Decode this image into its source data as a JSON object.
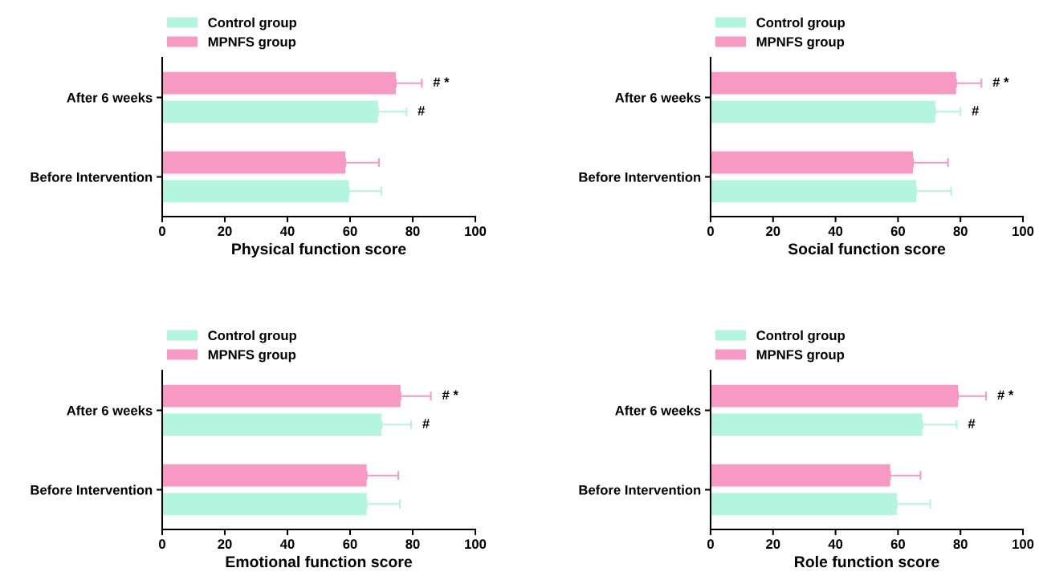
{
  "chart_data": [
    {
      "type": "bar",
      "orientation": "horizontal",
      "xlabel": "Physical function score",
      "categories": [
        "After 6 weeks",
        "Before Intervention"
      ],
      "xlim": [
        0,
        100
      ],
      "xticks": [
        0,
        20,
        40,
        60,
        80,
        100
      ],
      "legend": "top left",
      "grid": false,
      "series": [
        {
          "name": "Control group",
          "color": "#b3f5de",
          "values": [
            68.9,
            59.6
          ],
          "errors": [
            [
              68.9,
              78
            ],
            [
              59.6,
              70
            ]
          ]
        },
        {
          "name": "MPNFS group",
          "color": "#f799c4",
          "values": [
            74.6,
            58.5
          ],
          "errors": [
            [
              74.6,
              82.9
            ],
            [
              58.5,
              69.2
            ]
          ]
        }
      ],
      "annotations": [
        "# *",
        "#"
      ]
    },
    {
      "type": "bar",
      "orientation": "horizontal",
      "xlabel": "Social function score",
      "categories": [
        "After 6 weeks",
        "Before Intervention"
      ],
      "xlim": [
        0,
        100
      ],
      "xticks": [
        0,
        20,
        40,
        60,
        80,
        100
      ],
      "legend": "top left",
      "grid": false,
      "series": [
        {
          "name": "Control group",
          "color": "#b3f5de",
          "values": [
            71.9,
            65.8
          ],
          "errors": [
            [
              71.9,
              80
            ],
            [
              65.8,
              77
            ]
          ]
        },
        {
          "name": "MPNFS group",
          "color": "#f799c4",
          "values": [
            78.6,
            64.8
          ],
          "errors": [
            [
              78.6,
              86.7
            ],
            [
              64.8,
              76
            ]
          ]
        }
      ],
      "annotations": [
        "# *",
        "#"
      ]
    },
    {
      "type": "bar",
      "orientation": "horizontal",
      "xlabel": "Emotional function score",
      "categories": [
        "After 6 weeks",
        "Before Intervention"
      ],
      "xlim": [
        0,
        100
      ],
      "xticks": [
        0,
        20,
        40,
        60,
        80,
        100
      ],
      "legend": "top left",
      "grid": false,
      "series": [
        {
          "name": "Control group",
          "color": "#b3f5de",
          "values": [
            70,
            65.3
          ],
          "errors": [
            [
              70,
              79.5
            ],
            [
              65.3,
              75.9
            ]
          ]
        },
        {
          "name": "MPNFS group",
          "color": "#f799c4",
          "values": [
            76.1,
            65.3
          ],
          "errors": [
            [
              76.1,
              85.8
            ],
            [
              65.3,
              75.4
            ]
          ]
        }
      ],
      "annotations": [
        "# *",
        "#"
      ]
    },
    {
      "type": "bar",
      "orientation": "horizontal",
      "xlabel": "Role function score",
      "categories": [
        "After 6 weeks",
        "Before Intervention"
      ],
      "xlim": [
        0,
        100
      ],
      "xticks": [
        0,
        20,
        40,
        60,
        80,
        100
      ],
      "legend": "top left",
      "grid": false,
      "series": [
        {
          "name": "Control group",
          "color": "#b3f5de",
          "values": [
            67.8,
            59.6
          ],
          "errors": [
            [
              67.8,
              78.8
            ],
            [
              59.6,
              70.3
            ]
          ]
        },
        {
          "name": "MPNFS group",
          "color": "#f799c4",
          "values": [
            79.2,
            57.5
          ],
          "errors": [
            [
              79.2,
              88.2
            ],
            [
              57.5,
              67.2
            ]
          ]
        }
      ],
      "annotations": [
        "# *",
        "#"
      ]
    }
  ]
}
